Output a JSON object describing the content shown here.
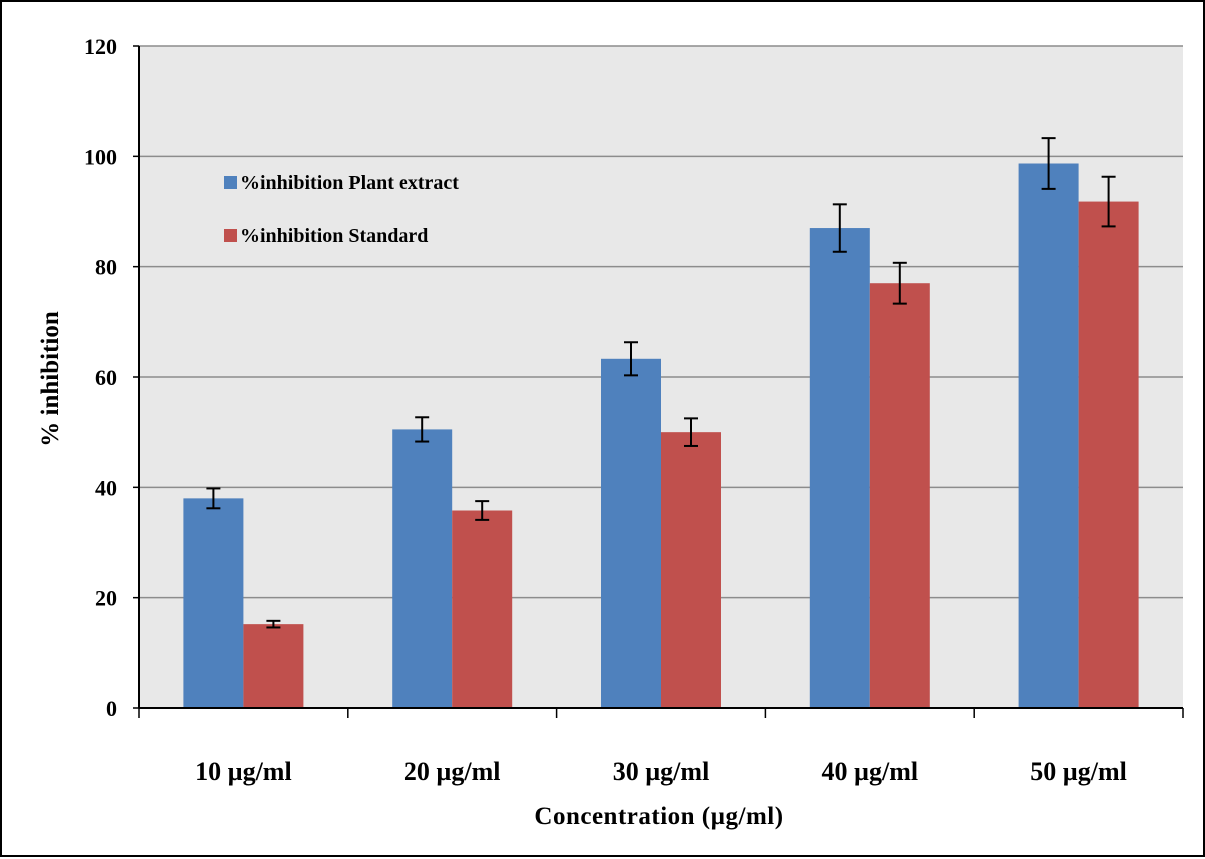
{
  "chart_data": {
    "type": "bar",
    "categories": [
      "10 µg/ml",
      "20 µg/ml",
      "30 µg/ml",
      "40 µg/ml",
      "50 µg/ml"
    ],
    "series": [
      {
        "name": "%inhibition Plant extract",
        "color": "#4F81BD",
        "values": [
          38,
          50.5,
          63.3,
          87,
          98.7
        ],
        "errors": [
          1.8,
          2.2,
          3.0,
          4.3,
          4.6
        ]
      },
      {
        "name": "%inhibition Standard",
        "color": "#C0504D",
        "values": [
          15.2,
          35.8,
          50,
          77,
          91.8
        ],
        "errors": [
          0.6,
          1.7,
          2.5,
          3.7,
          4.5
        ]
      }
    ],
    "xlabel": "Concentration (µg/ml)",
    "ylabel": "% inhibition",
    "ylim": [
      0,
      120
    ],
    "yticks": [
      "0",
      "20",
      "40",
      "60",
      "80",
      "100",
      "120"
    ],
    "grid": true,
    "legend_position": "top-left",
    "plot_background": "#E8E8E8",
    "gridline_color": "#8C8C8C"
  }
}
